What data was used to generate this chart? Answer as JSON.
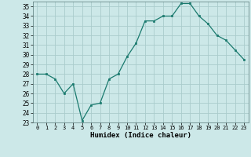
{
  "x": [
    0,
    1,
    2,
    3,
    4,
    5,
    6,
    7,
    8,
    9,
    10,
    11,
    12,
    13,
    14,
    15,
    16,
    17,
    18,
    19,
    20,
    21,
    22,
    23
  ],
  "y": [
    28,
    28,
    27.5,
    26,
    27,
    23.2,
    24.8,
    25,
    27.5,
    28,
    29.8,
    31.2,
    33.5,
    33.5,
    34,
    34,
    35.3,
    35.3,
    34,
    33.2,
    32,
    31.5,
    30.5,
    29.5
  ],
  "line_color": "#1a7a6e",
  "marker_color": "#1a7a6e",
  "bg_color": "#cce8e8",
  "grid_color": "#aacccc",
  "xlabel": "Humidex (Indice chaleur)",
  "ylim": [
    23,
    35.5
  ],
  "yticks": [
    23,
    24,
    25,
    26,
    27,
    28,
    29,
    30,
    31,
    32,
    33,
    34,
    35
  ],
  "xticks": [
    0,
    1,
    2,
    3,
    4,
    5,
    6,
    7,
    8,
    9,
    10,
    11,
    12,
    13,
    14,
    15,
    16,
    17,
    18,
    19,
    20,
    21,
    22,
    23
  ],
  "xlim": [
    -0.5,
    23.5
  ]
}
